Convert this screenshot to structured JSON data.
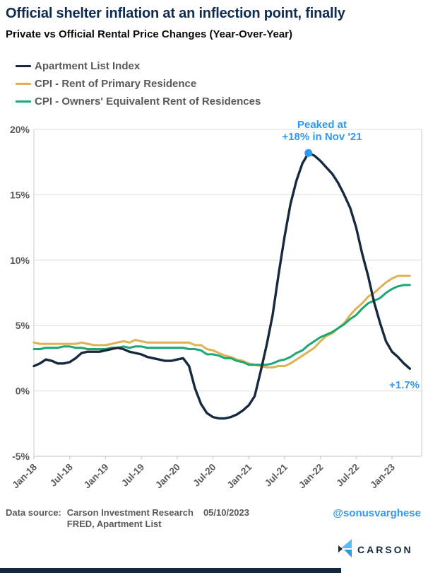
{
  "header": {
    "title": "Official shelter inflation at an inflection point, finally",
    "subtitle": "Private vs Official Rental Price Changes (Year-Over-Year)"
  },
  "colors": {
    "navy_line": "#16293e",
    "gold_line": "#dcb254",
    "green_line": "#1ba874",
    "annotation_blue": "#2b99f5",
    "axis_text_gray": "#595959",
    "title_navy": "#0f2b4d",
    "gridline": "#e4e4e4",
    "bottom_bar_navy": "#12263c",
    "logo_light_blue": "#54bdf2",
    "logo_mid_blue": "#2d9cdb"
  },
  "annotations": {
    "peak_line1": "Peaked at",
    "peak_line2": "+18% in Nov '21",
    "peak_month_index": 46,
    "peak_value": 18.2,
    "last_value_label": "+1.7%"
  },
  "chart_data": {
    "type": "line",
    "x_start": "Jan-18",
    "x_freq": "monthly",
    "n_points": 64,
    "x_tick_labels": [
      "Jan-18",
      "Jul-18",
      "Jan-19",
      "Jul-19",
      "Jan-20",
      "Jul-20",
      "Jan-21",
      "Jul-21",
      "Jan-22",
      "Jul-22",
      "Jan-23"
    ],
    "x_tick_month_indices": [
      0,
      6,
      12,
      18,
      24,
      30,
      36,
      42,
      48,
      54,
      60
    ],
    "y_tick_labels": [
      "20%",
      "15%",
      "10%",
      "5%",
      "0%",
      "-5%"
    ],
    "y_tick_values": [
      20,
      15,
      10,
      5,
      0,
      -5
    ],
    "ylim": [
      -5,
      20
    ],
    "grid": true,
    "legend_position": "top-left",
    "series": [
      {
        "label": "Apartment List Index",
        "color": "#16293e",
        "values": [
          1.9,
          2.1,
          2.4,
          2.3,
          2.1,
          2.1,
          2.2,
          2.5,
          2.9,
          3.0,
          3.0,
          3.0,
          3.1,
          3.2,
          3.3,
          3.2,
          3.0,
          2.9,
          2.8,
          2.6,
          2.5,
          2.4,
          2.3,
          2.3,
          2.4,
          2.5,
          1.9,
          0.2,
          -1.0,
          -1.7,
          -2.0,
          -2.1,
          -2.1,
          -2.0,
          -1.8,
          -1.5,
          -1.1,
          -0.4,
          1.5,
          3.5,
          5.8,
          8.9,
          11.8,
          14.3,
          16.1,
          17.4,
          18.2,
          18.0,
          17.6,
          17.1,
          16.6,
          15.9,
          15.0,
          14.0,
          12.5,
          10.5,
          8.8,
          6.8,
          5.2,
          3.8,
          3.0,
          2.6,
          2.1,
          1.7
        ]
      },
      {
        "label": "CPI - Rent of Primary Residence",
        "color": "#dcb254",
        "values": [
          3.7,
          3.6,
          3.6,
          3.6,
          3.6,
          3.6,
          3.6,
          3.6,
          3.7,
          3.6,
          3.5,
          3.5,
          3.5,
          3.6,
          3.7,
          3.8,
          3.7,
          3.9,
          3.8,
          3.7,
          3.7,
          3.7,
          3.7,
          3.7,
          3.7,
          3.7,
          3.7,
          3.5,
          3.5,
          3.2,
          3.1,
          2.9,
          2.7,
          2.6,
          2.4,
          2.3,
          2.1,
          2.0,
          1.9,
          1.8,
          1.8,
          1.9,
          1.9,
          2.1,
          2.4,
          2.7,
          3.0,
          3.3,
          3.8,
          4.2,
          4.4,
          4.8,
          5.2,
          5.8,
          6.3,
          6.7,
          7.2,
          7.5,
          7.9,
          8.3,
          8.6,
          8.8,
          8.8,
          8.8
        ]
      },
      {
        "label": "CPI - Owners' Equivalent Rent of Residences",
        "color": "#1ba874",
        "values": [
          3.2,
          3.2,
          3.3,
          3.3,
          3.3,
          3.4,
          3.4,
          3.3,
          3.3,
          3.2,
          3.2,
          3.2,
          3.2,
          3.3,
          3.3,
          3.4,
          3.3,
          3.4,
          3.4,
          3.3,
          3.3,
          3.3,
          3.3,
          3.3,
          3.3,
          3.3,
          3.2,
          3.2,
          3.1,
          2.8,
          2.8,
          2.7,
          2.5,
          2.5,
          2.3,
          2.2,
          2.0,
          2.0,
          2.0,
          2.0,
          2.1,
          2.3,
          2.4,
          2.6,
          2.9,
          3.1,
          3.5,
          3.8,
          4.1,
          4.3,
          4.5,
          4.8,
          5.1,
          5.5,
          5.8,
          6.3,
          6.7,
          6.9,
          7.1,
          7.5,
          7.8,
          8.0,
          8.1,
          8.1
        ]
      }
    ]
  },
  "footer": {
    "label": "Data source:",
    "source_line1": "Carson Investment Research",
    "source_line2": "FRED, Apartment List",
    "date": "05/10/2023",
    "handle": "@sonusvarghese"
  },
  "logo": {
    "brand": "CARSON",
    "icon": "carson-chevron-icon"
  }
}
